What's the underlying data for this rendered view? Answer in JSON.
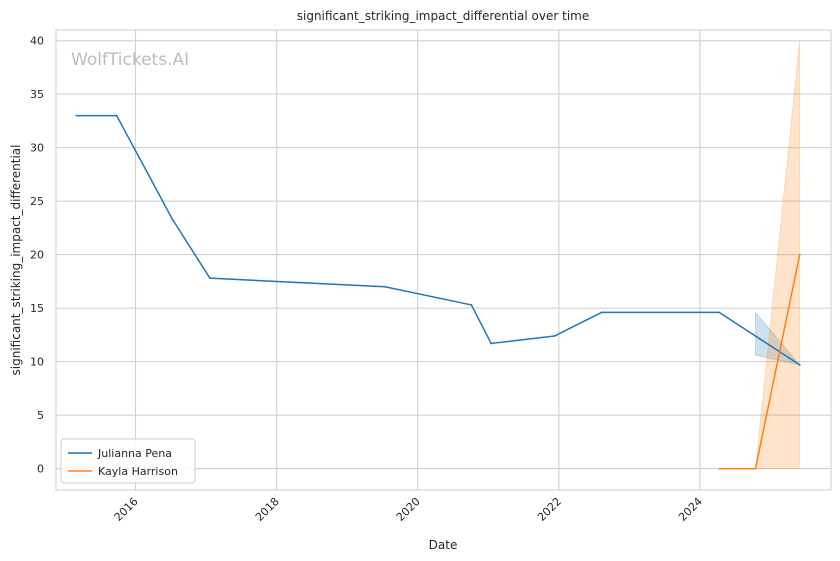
{
  "chart_data": {
    "type": "line",
    "title": "significant_striking_impact_differential over time",
    "xlabel": "Date",
    "ylabel": "significant_striking_impact_differential",
    "watermark": "WolfTickets.AI",
    "xlim": [
      "2014-11-15",
      "2025-11-10"
    ],
    "ylim": [
      -2,
      41
    ],
    "x_ticks": [
      {
        "date": "2016-01-01",
        "label": "2016"
      },
      {
        "date": "2018-01-01",
        "label": "2018"
      },
      {
        "date": "2020-01-01",
        "label": "2020"
      },
      {
        "date": "2022-01-01",
        "label": "2022"
      },
      {
        "date": "2024-01-01",
        "label": "2024"
      }
    ],
    "y_ticks": [
      0,
      5,
      10,
      15,
      20,
      25,
      30,
      35,
      40
    ],
    "grid": true,
    "legend_position": "bottom-left",
    "series": [
      {
        "name": "Julianna Pena",
        "color": "#1f77b4",
        "points": [
          {
            "date": "2015-03-01",
            "y": 33.0
          },
          {
            "date": "2015-09-25",
            "y": 33.0
          },
          {
            "date": "2016-07-10",
            "y": 23.3
          },
          {
            "date": "2017-01-20",
            "y": 17.8
          },
          {
            "date": "2019-07-15",
            "y": 17.0
          },
          {
            "date": "2020-10-05",
            "y": 15.3
          },
          {
            "date": "2021-01-15",
            "y": 11.7
          },
          {
            "date": "2021-12-10",
            "y": 12.4
          },
          {
            "date": "2022-08-10",
            "y": 14.6
          },
          {
            "date": "2024-04-10",
            "y": 14.6
          },
          {
            "date": "2025-06-01",
            "y": 9.7
          }
        ],
        "band": [
          {
            "date": "2024-10-15",
            "lower": 10.6,
            "upper": 14.6
          },
          {
            "date": "2025-06-01",
            "lower": 9.7,
            "upper": 9.7
          }
        ]
      },
      {
        "name": "Kayla Harrison",
        "color": "#ff7f0e",
        "points": [
          {
            "date": "2024-04-10",
            "y": 0.0
          },
          {
            "date": "2024-10-15",
            "y": 0.0
          },
          {
            "date": "2025-06-01",
            "y": 20.0
          }
        ],
        "band": [
          {
            "date": "2024-10-15",
            "lower": 0.0,
            "upper": 0.0
          },
          {
            "date": "2025-06-01",
            "lower": 0.0,
            "upper": 40.0
          }
        ]
      }
    ]
  }
}
